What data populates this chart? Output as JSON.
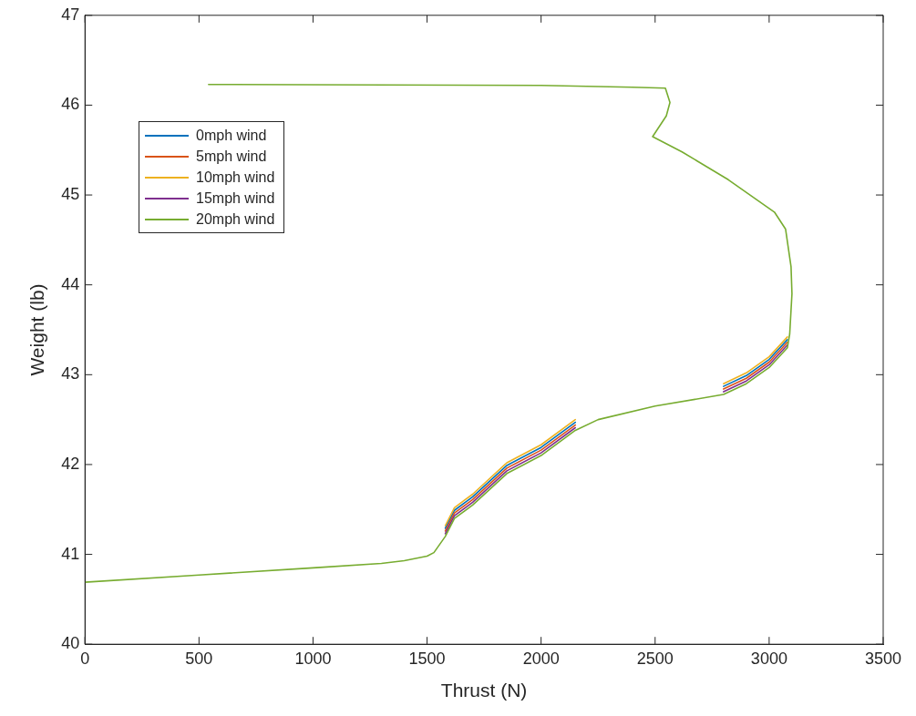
{
  "chart_data": {
    "type": "line",
    "xlabel": "Thrust (N)",
    "ylabel": "Weight (lb)",
    "x": [
      0,
      500,
      1000,
      1300,
      1400,
      1500,
      1530,
      1580,
      1620,
      1700,
      1850,
      2000,
      2150,
      2250,
      2500,
      2800,
      2900,
      3000,
      3080,
      3090,
      3100,
      3096,
      3072,
      3023,
      2821,
      2618,
      2489,
      2549,
      2565,
      2545,
      2400,
      2000,
      542
    ],
    "series": [
      {
        "name": "0mph wind",
        "color": "#0072bd",
        "values": [
          null,
          null,
          null,
          null,
          null,
          null,
          null,
          41.29,
          41.49,
          41.64,
          41.99,
          42.19,
          42.47,
          null,
          null,
          42.87,
          42.99,
          43.17,
          43.39,
          null,
          null,
          null,
          null,
          null,
          null,
          null,
          null,
          null,
          null,
          null,
          null,
          null,
          null
        ]
      },
      {
        "name": "5mph wind",
        "color": "#d95319",
        "values": [
          null,
          null,
          null,
          null,
          null,
          null,
          null,
          41.26,
          41.46,
          41.61,
          41.96,
          42.16,
          42.44,
          null,
          null,
          42.84,
          42.96,
          43.14,
          43.36,
          null,
          null,
          null,
          null,
          null,
          null,
          null,
          null,
          null,
          null,
          null,
          null,
          null,
          null
        ]
      },
      {
        "name": "10mph wind",
        "color": "#edb120",
        "values": [
          null,
          null,
          null,
          null,
          null,
          null,
          null,
          41.32,
          41.52,
          41.67,
          42.02,
          42.22,
          42.5,
          null,
          null,
          42.9,
          43.02,
          43.2,
          43.42,
          null,
          null,
          null,
          null,
          null,
          null,
          null,
          null,
          null,
          null,
          null,
          null,
          null,
          null
        ]
      },
      {
        "name": "15mph wind",
        "color": "#7e2f8e",
        "values": [
          null,
          null,
          null,
          null,
          null,
          null,
          null,
          41.23,
          41.43,
          41.58,
          41.93,
          42.13,
          42.41,
          null,
          null,
          42.81,
          42.93,
          43.11,
          43.33,
          null,
          null,
          null,
          null,
          null,
          null,
          null,
          null,
          null,
          null,
          null,
          null,
          null,
          null
        ]
      },
      {
        "name": "20mph wind",
        "color": "#77ac30",
        "values": [
          40.69,
          40.77,
          40.85,
          40.9,
          40.93,
          40.98,
          41.02,
          41.2,
          41.4,
          41.55,
          41.9,
          42.1,
          42.38,
          42.5,
          42.65,
          42.78,
          42.9,
          43.08,
          43.3,
          43.45,
          43.9,
          44.2,
          44.62,
          44.81,
          45.17,
          45.48,
          45.65,
          45.88,
          46.03,
          46.19,
          46.2,
          46.22,
          46.23
        ]
      }
    ],
    "xlim": [
      0,
      3500
    ],
    "xticks": [
      0,
      500,
      1000,
      1500,
      2000,
      2500,
      3000,
      3500
    ],
    "ylim": [
      40,
      47
    ],
    "yticks": [
      40,
      41,
      42,
      43,
      44,
      45,
      46,
      47
    ],
    "grid": false,
    "legend": "top left",
    "marker": "none",
    "line_style": "solid"
  }
}
